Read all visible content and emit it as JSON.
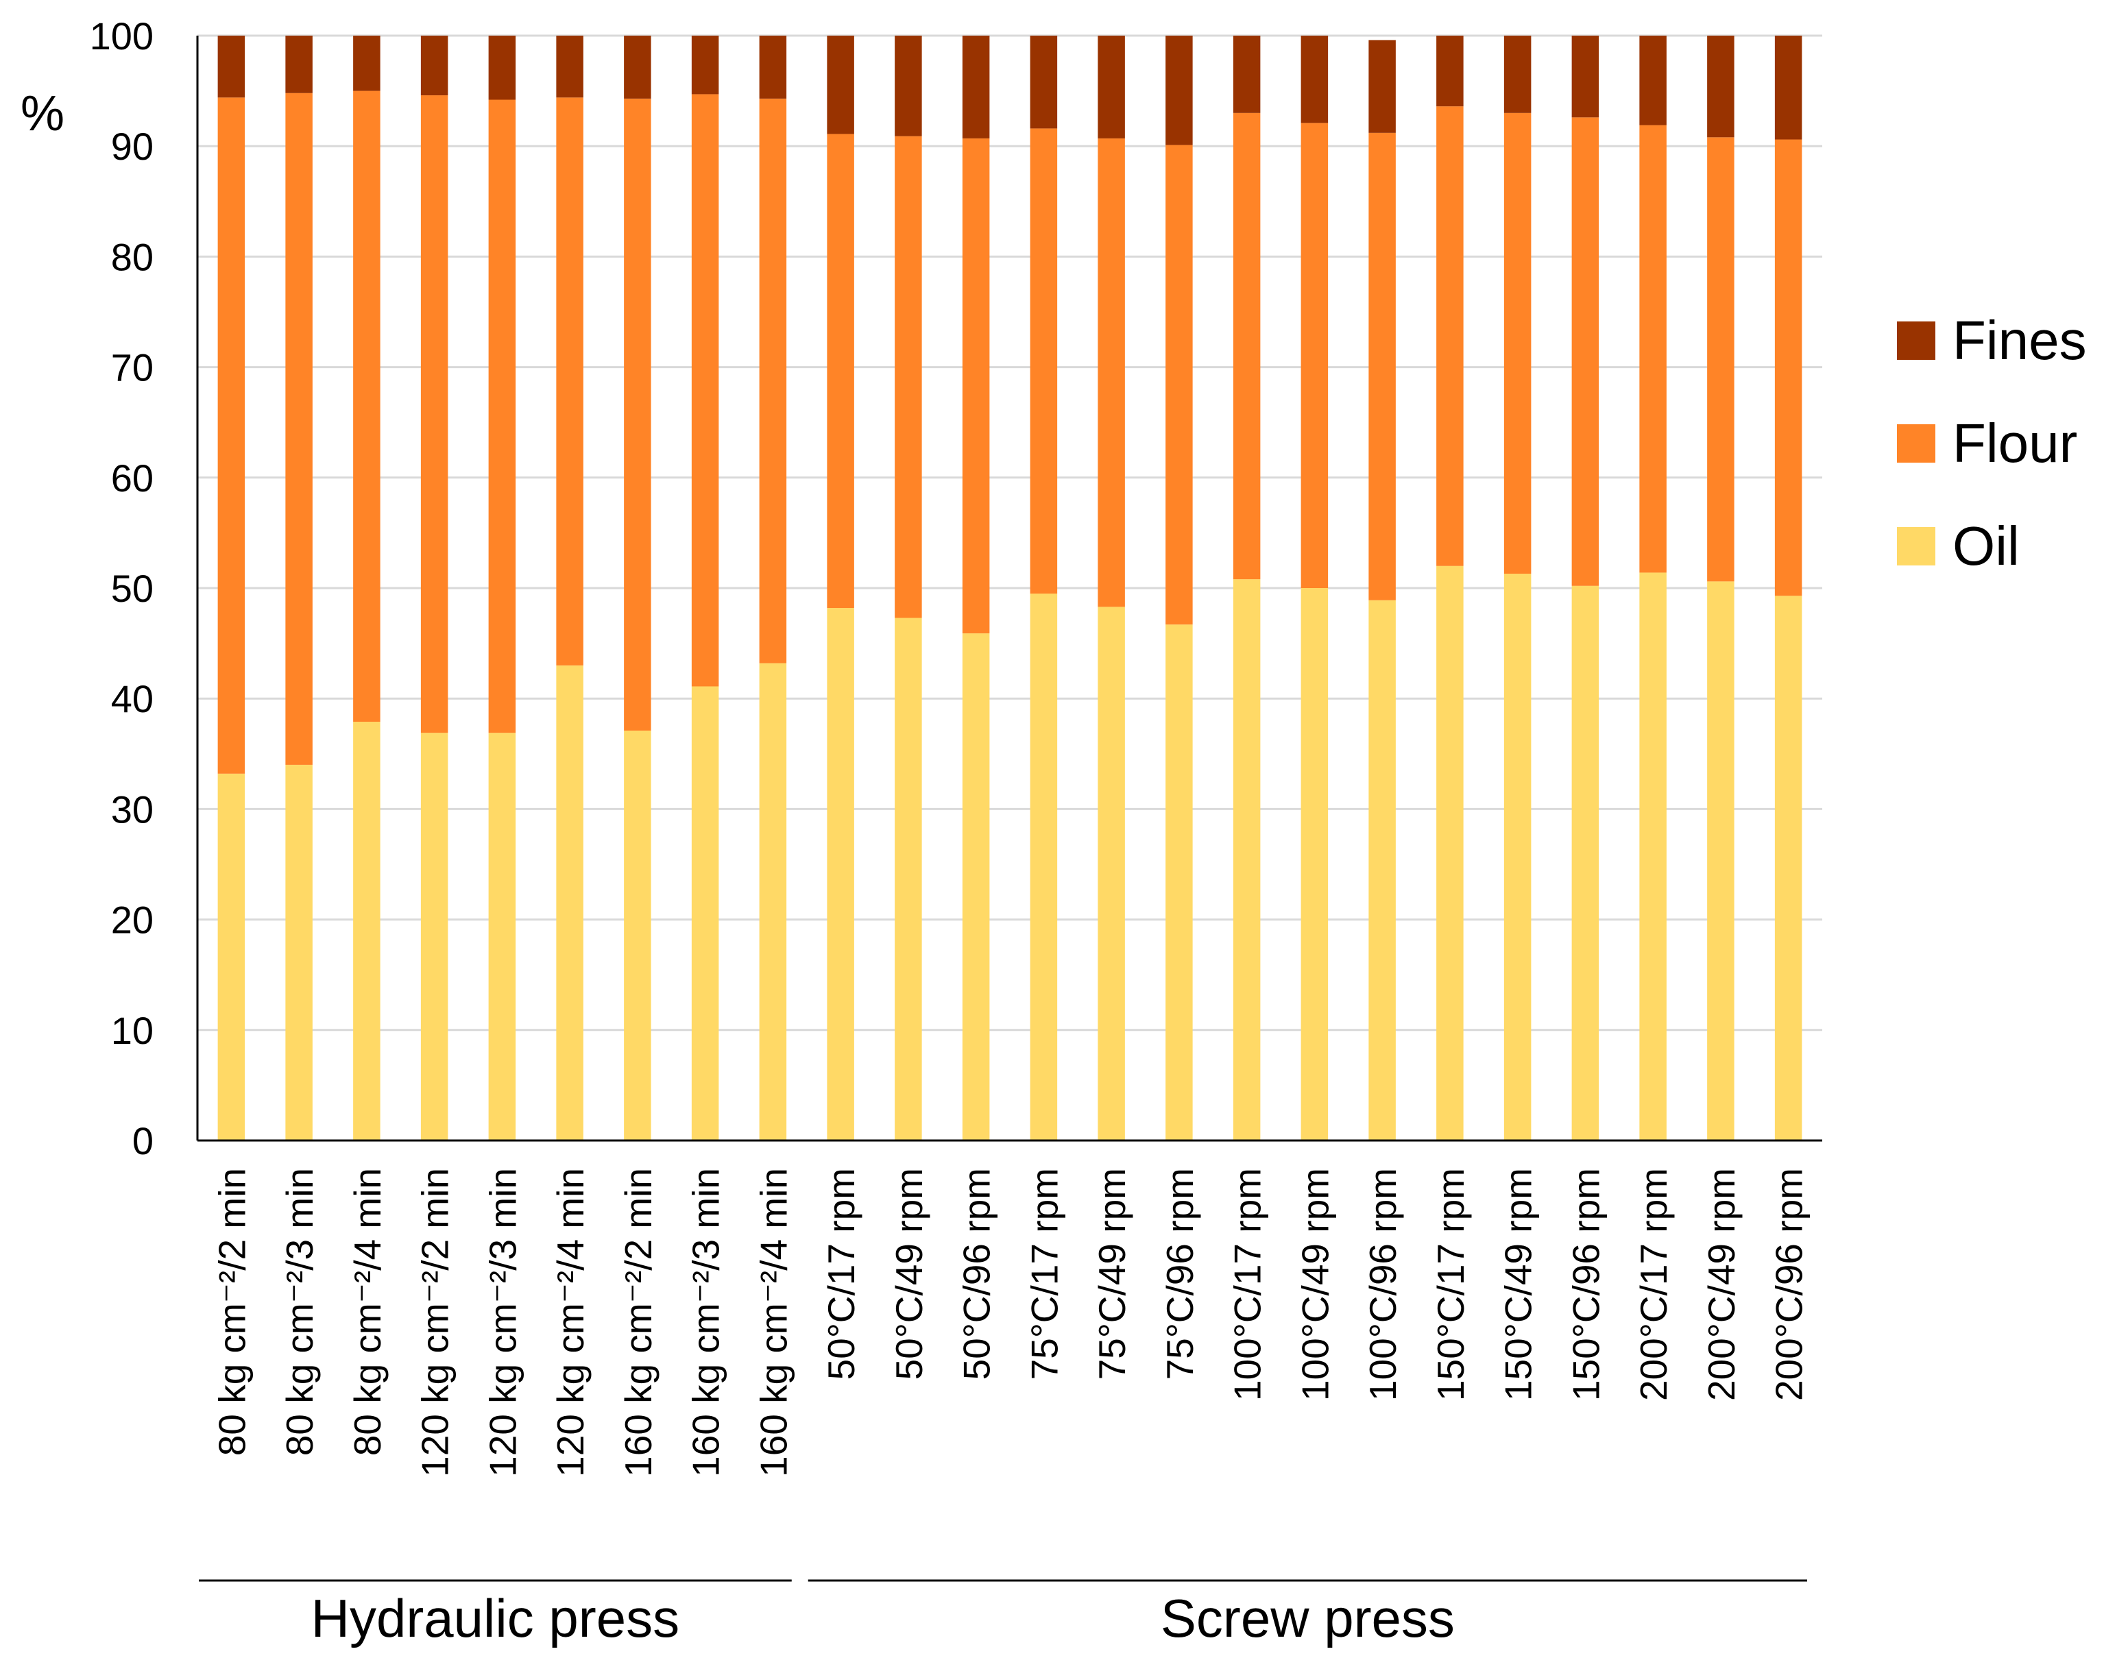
{
  "chart_data": {
    "type": "bar",
    "stacked": true,
    "title": "",
    "xlabel": "",
    "ylabel": "%",
    "ylim": [
      0,
      100
    ],
    "yticks": [
      0,
      10,
      20,
      30,
      40,
      50,
      60,
      70,
      80,
      90,
      100
    ],
    "grid": true,
    "legend_position": "right",
    "categories": [
      "80 kg cm⁻²/2 min",
      "80 kg cm⁻²/3 min",
      "80 kg cm⁻²/4 min",
      "120 kg cm⁻²/2 min",
      "120 kg cm⁻²/3 min",
      "120 kg cm⁻²/4 min",
      "160 kg cm⁻²/2 min",
      "160 kg cm⁻²/3 min",
      "160 kg cm⁻²/4 min",
      "50°C/17 rpm",
      "50°C/49 rpm",
      "50°C/96 rpm",
      "75°C/17 rpm",
      "75°C/49 rpm",
      "75°C/96 rpm",
      "100°C/17 rpm",
      "100°C/49 rpm",
      "100°C/96 rpm",
      "150°C/17 rpm",
      "150°C/49 rpm",
      "150°C/96 rpm",
      "200°C/17 rpm",
      "200°C/49 rpm",
      "200°C/96 rpm"
    ],
    "groups": [
      {
        "label": "Hydraulic press",
        "start": 0,
        "end": 8
      },
      {
        "label": "Screw press",
        "start": 9,
        "end": 23
      }
    ],
    "series": [
      {
        "name": "Oil",
        "color": "#FFD966",
        "values": [
          33.2,
          34.0,
          37.9,
          36.9,
          36.9,
          43.0,
          37.1,
          41.1,
          43.2,
          48.2,
          47.3,
          45.9,
          49.5,
          48.3,
          46.7,
          50.8,
          50.0,
          48.9,
          52.0,
          51.3,
          50.2,
          51.4,
          50.6,
          49.3
        ]
      },
      {
        "name": "Flour",
        "color": "#FF8427",
        "values": [
          61.2,
          60.8,
          57.1,
          57.7,
          57.3,
          51.4,
          57.2,
          53.6,
          51.1,
          42.9,
          43.6,
          44.8,
          42.1,
          42.4,
          43.4,
          42.2,
          42.1,
          42.3,
          41.6,
          41.7,
          42.4,
          40.5,
          40.2,
          41.3
        ]
      },
      {
        "name": "Fines",
        "color": "#993300",
        "values": [
          5.6,
          5.2,
          5.0,
          5.4,
          5.8,
          5.6,
          5.7,
          5.3,
          5.7,
          8.9,
          9.1,
          9.3,
          8.4,
          9.3,
          9.9,
          7.0,
          7.9,
          8.4,
          6.4,
          7.0,
          7.4,
          8.1,
          9.2,
          9.4
        ]
      }
    ],
    "legend_order": [
      "Fines",
      "Flour",
      "Oil"
    ]
  }
}
